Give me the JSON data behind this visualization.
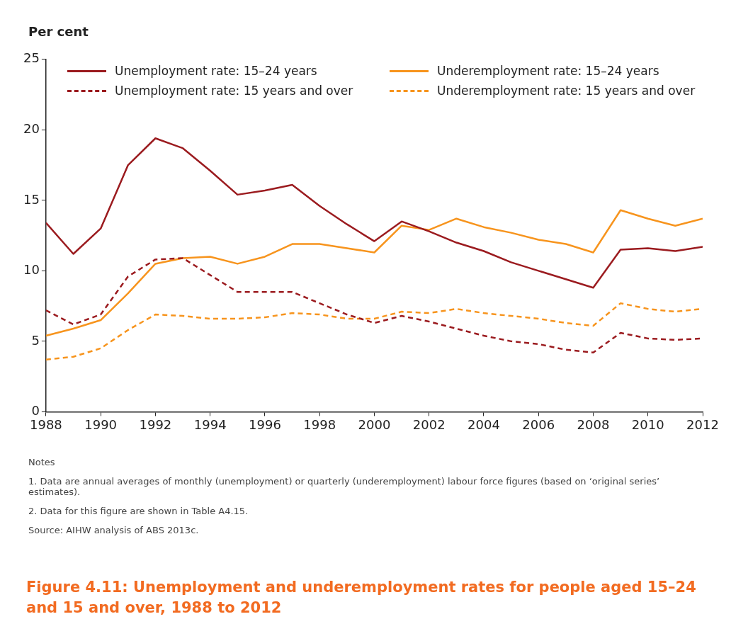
{
  "chart_data": {
    "type": "line",
    "title": "Figure 4.11: Unemployment and underemployment rates for people aged 15–24 and 15 and over, 1988 to 2012",
    "ylabel": "Per cent",
    "x": [
      1988,
      1989,
      1990,
      1991,
      1992,
      1993,
      1994,
      1995,
      1996,
      1997,
      1998,
      1999,
      2000,
      2001,
      2002,
      2003,
      2004,
      2005,
      2006,
      2007,
      2008,
      2009,
      2010,
      2011,
      2012
    ],
    "series": [
      {
        "name": "Unemployment rate: 15–24 years",
        "color": "#9b1b1f",
        "line_style": "solid",
        "values": [
          13.4,
          11.2,
          13.0,
          17.5,
          19.4,
          18.7,
          17.1,
          15.4,
          15.7,
          16.1,
          14.6,
          13.3,
          12.1,
          13.5,
          12.8,
          12.0,
          11.4,
          10.6,
          10.0,
          9.4,
          8.8,
          11.5,
          11.6,
          11.4,
          11.7
        ]
      },
      {
        "name": "Unemployment rate: 15 years and over",
        "color": "#9b1b1f",
        "line_style": "dashed",
        "values": [
          7.2,
          6.2,
          6.9,
          9.6,
          10.8,
          10.9,
          9.7,
          8.5,
          8.5,
          8.5,
          7.7,
          6.9,
          6.3,
          6.8,
          6.4,
          5.9,
          5.4,
          5.0,
          4.8,
          4.4,
          4.2,
          5.6,
          5.2,
          5.1,
          5.2
        ]
      },
      {
        "name": "Underemployment rate: 15–24 years",
        "color": "#f7941d",
        "line_style": "solid",
        "values": [
          5.4,
          5.9,
          6.5,
          8.4,
          10.5,
          10.9,
          11.0,
          10.5,
          11.0,
          11.9,
          11.9,
          11.6,
          11.3,
          13.2,
          12.9,
          13.7,
          13.1,
          12.7,
          12.2,
          11.9,
          11.3,
          14.3,
          13.7,
          13.2,
          13.7
        ]
      },
      {
        "name": "Underemployment rate: 15 years and over",
        "color": "#f7941d",
        "line_style": "dashed",
        "values": [
          3.7,
          3.9,
          4.5,
          5.8,
          6.9,
          6.8,
          6.6,
          6.6,
          6.7,
          7.0,
          6.9,
          6.6,
          6.6,
          7.1,
          7.0,
          7.3,
          7.0,
          6.8,
          6.6,
          6.3,
          6.1,
          7.7,
          7.3,
          7.1,
          7.3
        ]
      }
    ],
    "xlim": [
      1988,
      2012
    ],
    "xticks": [
      1988,
      1990,
      1992,
      1994,
      1996,
      1998,
      2000,
      2002,
      2004,
      2006,
      2008,
      2010,
      2012
    ],
    "ylim": [
      0,
      25
    ],
    "yticks": [
      0,
      5,
      10,
      15,
      20,
      25
    ],
    "grid": false,
    "legend": "top",
    "marker": "none",
    "annotations": [
      "Notes",
      "1.  Data are annual averages of monthly (unemployment) or quarterly (underemployment) labour force figures (based on ‘original series’ estimates).",
      "2.  Data for this figure are shown in Table A4.15.",
      "Source: AIHW analysis of ABS 2013c."
    ]
  }
}
